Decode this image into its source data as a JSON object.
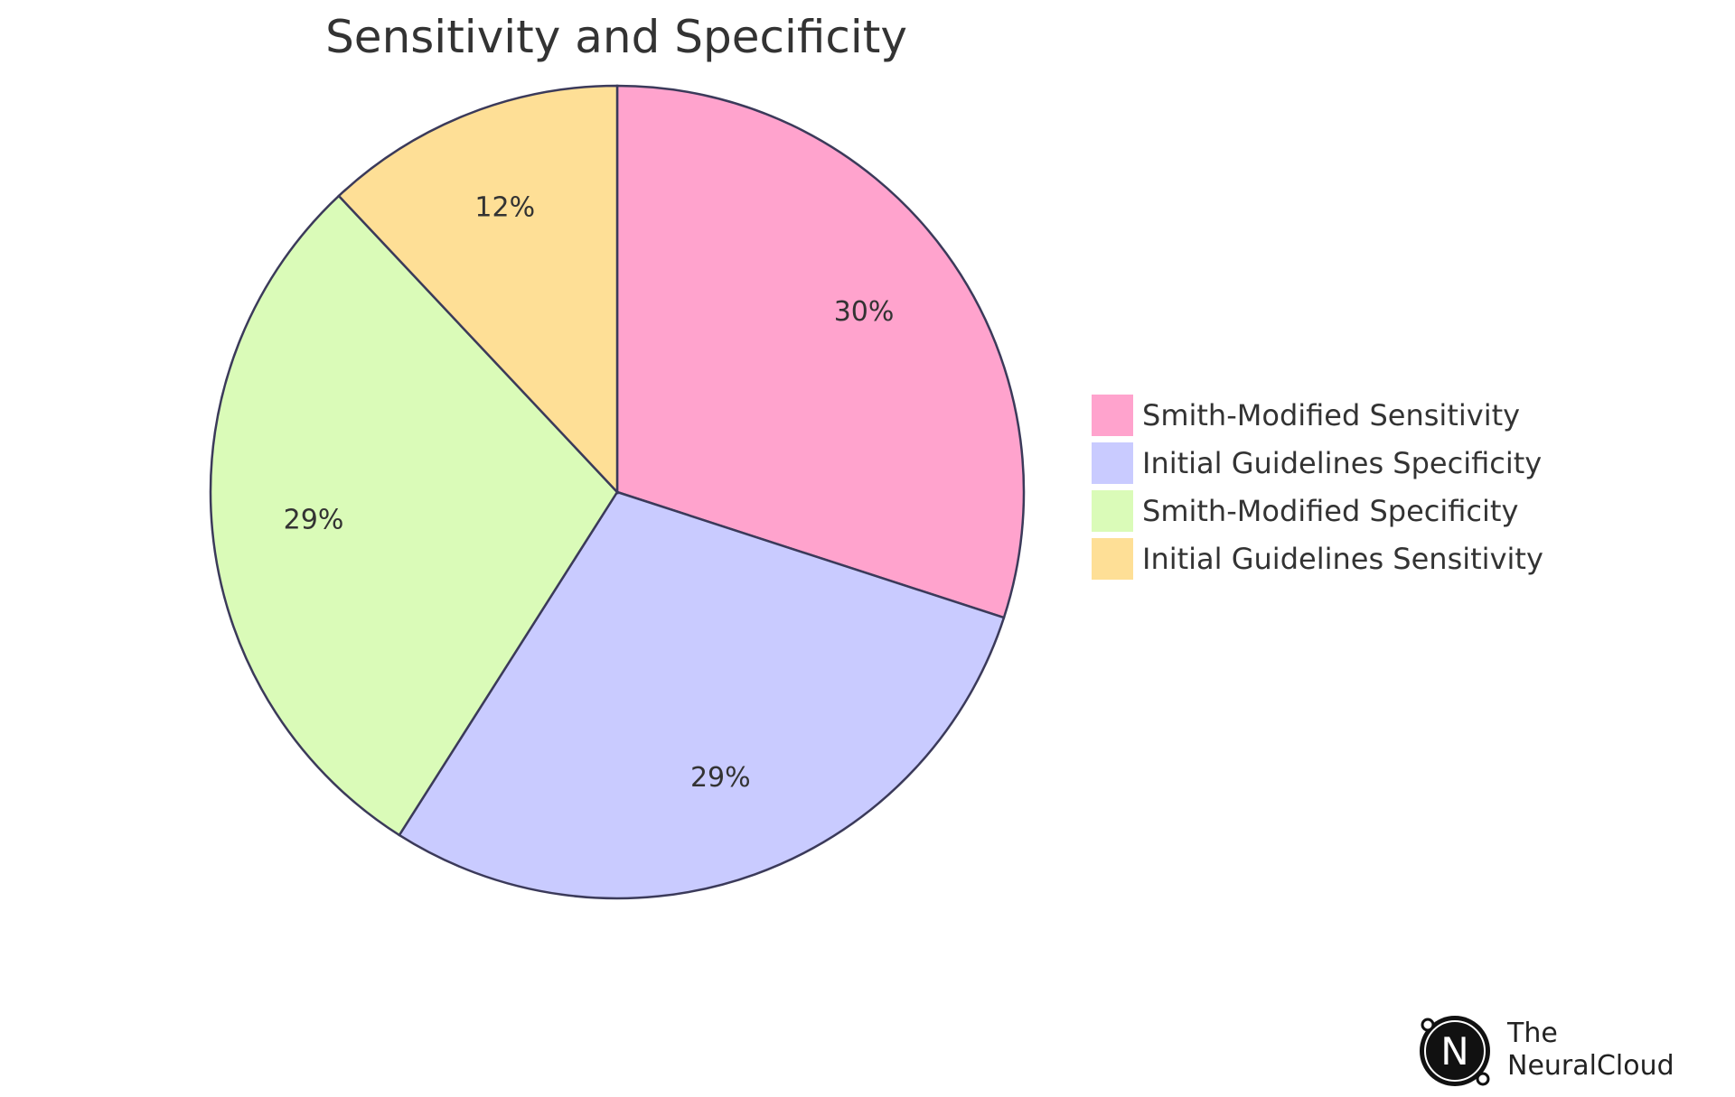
{
  "chart_data": {
    "type": "pie",
    "title": "Sensitivity and Specificity",
    "slices": [
      {
        "label": "Smith-Modified Sensitivity",
        "value": 30,
        "display": "30%",
        "color": "#FFA3CD"
      },
      {
        "label": "Initial Guidelines Specificity",
        "value": 29,
        "display": "29%",
        "color": "#C9CBFF"
      },
      {
        "label": "Smith-Modified Specificity",
        "value": 29,
        "display": "29%",
        "color": "#DAFBB8"
      },
      {
        "label": "Initial Guidelines Sensitivity",
        "value": 12,
        "display": "12%",
        "color": "#FEDF96"
      }
    ],
    "legend_position": "right"
  },
  "brand": {
    "the": "The",
    "name": "NeuralCloud",
    "logo_letter": "N"
  }
}
